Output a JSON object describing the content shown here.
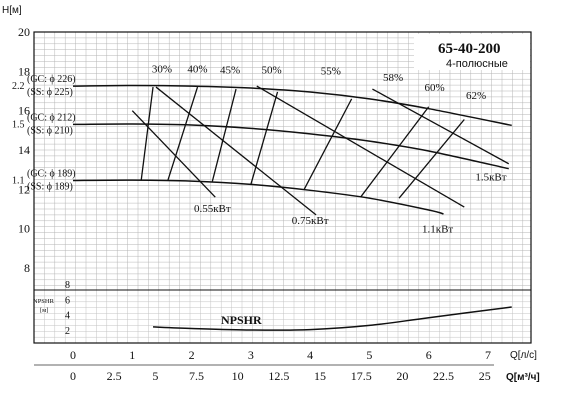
{
  "chart_data": {
    "type": "line",
    "title": "65-40-200",
    "subtitle": "4-полюсные",
    "ylabel": "H[м]",
    "ylim": [
      8,
      20
    ],
    "y_ticks": [
      "20",
      "18",
      "16",
      "14",
      "12",
      "10",
      "8"
    ],
    "npsh_label": "NPSHR",
    "npsh_axis_label": "NPSHR\n[м]",
    "npsh_ticks": [
      "8",
      "6",
      "4",
      "2"
    ],
    "x_axis_ls": {
      "label": "Q[л/с]",
      "ticks": [
        "0",
        "1",
        "2",
        "3",
        "4",
        "5",
        "6",
        "7"
      ],
      "range": [
        0,
        7
      ]
    },
    "x_axis_m3h": {
      "label": "Q[м³/ч]",
      "ticks": [
        "0",
        "2.5",
        "5",
        "7.5",
        "10",
        "12.5",
        "15",
        "17.5",
        "20",
        "22.5",
        "25"
      ],
      "range": [
        0,
        25
      ]
    },
    "impeller_curves": [
      {
        "name": "GC: ϕ226 / SS: ϕ225",
        "power_label": "2.2",
        "gc": "(GC: ϕ 226)",
        "ss": "(SS: ϕ 225)",
        "x": [
          0,
          1,
          2,
          3,
          4,
          5,
          6,
          7.4
        ],
        "y": [
          17.25,
          17.28,
          17.25,
          17.15,
          16.95,
          16.6,
          16.1,
          15.25
        ]
      },
      {
        "name": "GC: ϕ212 / SS: ϕ210",
        "power_label": "1.5",
        "gc": "(GC: ϕ 212)",
        "ss": "(SS: ϕ 210)",
        "x": [
          0,
          1,
          2,
          3,
          4,
          5,
          6,
          7.35
        ],
        "y": [
          15.3,
          15.32,
          15.27,
          15.1,
          14.82,
          14.45,
          13.95,
          13.05
        ]
      },
      {
        "name": "GC: ϕ189 / SS: ϕ189",
        "power_label": "1.1",
        "gc": "(GC: ϕ 189)",
        "ss": "(SS: ϕ 189)",
        "x": [
          0,
          1,
          2,
          3,
          4,
          5,
          6,
          6.25
        ],
        "y": [
          12.45,
          12.47,
          12.42,
          12.25,
          11.95,
          11.55,
          10.95,
          10.75
        ]
      }
    ],
    "efficiency_lines": [
      {
        "label": "30%",
        "x": [
          1.15,
          1.35
        ],
        "y": [
          12.45,
          17.2
        ]
      },
      {
        "label": "40%",
        "x": [
          1.6,
          2.1
        ],
        "y": [
          12.45,
          17.2
        ]
      },
      {
        "label": "45%",
        "x": [
          2.35,
          2.75
        ],
        "y": [
          12.4,
          17.1
        ]
      },
      {
        "label": "50%",
        "x": [
          3.0,
          3.45
        ],
        "y": [
          12.25,
          16.95
        ]
      },
      {
        "label": "55%",
        "x": [
          3.9,
          4.7
        ],
        "y": [
          12.0,
          16.6
        ]
      },
      {
        "label": "58%",
        "x": [
          4.85,
          6.0
        ],
        "y": [
          11.6,
          16.2
        ]
      },
      {
        "label": "60%",
        "x": [
          5.5,
          6.6
        ],
        "y": [
          11.55,
          15.55
        ]
      }
    ],
    "efficiency_label_positions": [
      {
        "label": "30%",
        "x": 1.5,
        "y": 17.95
      },
      {
        "label": "40%",
        "x": 2.1,
        "y": 17.95
      },
      {
        "label": "45%",
        "x": 2.65,
        "y": 17.9
      },
      {
        "label": "50%",
        "x": 3.35,
        "y": 17.9
      },
      {
        "label": "55%",
        "x": 4.35,
        "y": 17.85
      },
      {
        "label": "58%",
        "x": 5.4,
        "y": 17.5
      },
      {
        "label": "60%",
        "x": 6.1,
        "y": 17.0
      },
      {
        "label": "62%",
        "x": 6.8,
        "y": 16.6
      }
    ],
    "power_lines": [
      {
        "label": "0.55кВт",
        "x": [
          1.0,
          2.4
        ],
        "y": [
          16.0,
          11.6
        ],
        "label_x": 2.35,
        "label_y": 10.85
      },
      {
        "label": "0.75кВт",
        "x": [
          1.4,
          4.1
        ],
        "y": [
          17.2,
          10.7
        ],
        "label_x": 4.0,
        "label_y": 10.25
      },
      {
        "label": "1.1кВт",
        "x": [
          3.1,
          6.6
        ],
        "y": [
          17.25,
          11.1
        ],
        "label_x": 6.15,
        "label_y": 9.8
      },
      {
        "label": "1.5кВт",
        "x": [
          5.05,
          7.35
        ],
        "y": [
          17.1,
          13.3
        ],
        "label_x": 7.05,
        "label_y": 12.45
      }
    ],
    "npsh_curve": {
      "name": "NPSHR",
      "x": [
        1.35,
        2,
        3,
        4,
        5,
        6,
        7.4
      ],
      "y": [
        2.4,
        2.2,
        2.0,
        2.05,
        2.6,
        3.6,
        5.0
      ]
    }
  }
}
